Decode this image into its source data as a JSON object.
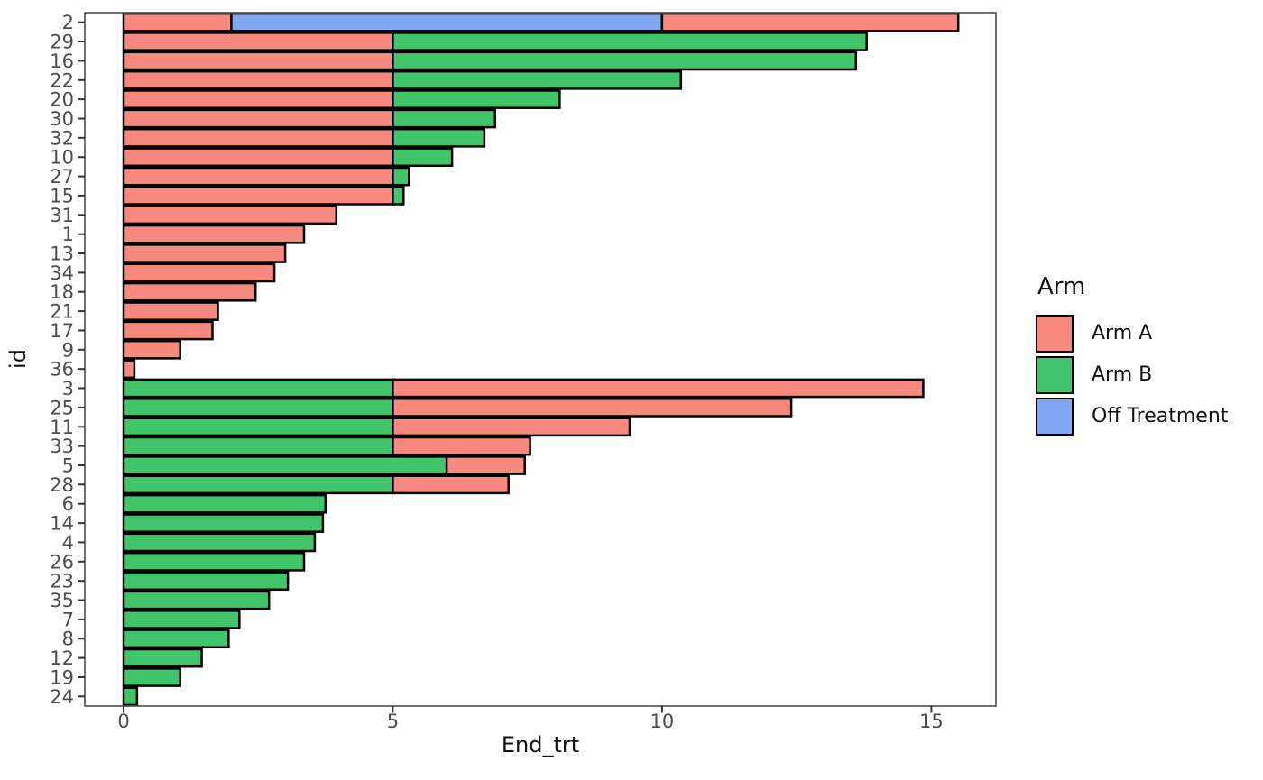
{
  "chart_data": {
    "type": "bar",
    "orientation": "horizontal",
    "stacked": true,
    "title": "",
    "xlabel": "End_trt",
    "ylabel": "id",
    "xlim": [
      -0.72,
      16.2
    ],
    "xticks": [
      0,
      5,
      10,
      15
    ],
    "grid": false,
    "legend": {
      "title": "Arm",
      "position": "right",
      "entries": [
        {
          "label": "Arm A",
          "color": "#F8897F"
        },
        {
          "label": "Arm B",
          "color": "#42C56A"
        },
        {
          "label": "Off Treatment",
          "color": "#81A7F0"
        }
      ]
    },
    "colors": {
      "Arm A": "#F8897F",
      "Arm B": "#42C56A",
      "Off Treatment": "#81A7F0",
      "bar_border": "#000000"
    },
    "categories": [
      "2",
      "29",
      "16",
      "22",
      "20",
      "30",
      "32",
      "10",
      "27",
      "15",
      "31",
      "1",
      "13",
      "34",
      "18",
      "21",
      "17",
      "9",
      "36",
      "3",
      "25",
      "11",
      "33",
      "5",
      "28",
      "6",
      "14",
      "4",
      "26",
      "23",
      "35",
      "7",
      "8",
      "12",
      "19",
      "24"
    ],
    "rows": [
      {
        "id": "2",
        "segments": [
          {
            "arm": "Arm A",
            "start": 0,
            "end": 2
          },
          {
            "arm": "Off Treatment",
            "start": 2,
            "end": 10
          },
          {
            "arm": "Arm A",
            "start": 10,
            "end": 15.5
          }
        ]
      },
      {
        "id": "29",
        "segments": [
          {
            "arm": "Arm A",
            "start": 0,
            "end": 5
          },
          {
            "arm": "Arm B",
            "start": 5,
            "end": 13.8
          }
        ]
      },
      {
        "id": "16",
        "segments": [
          {
            "arm": "Arm A",
            "start": 0,
            "end": 5
          },
          {
            "arm": "Arm B",
            "start": 5,
            "end": 13.6
          }
        ]
      },
      {
        "id": "22",
        "segments": [
          {
            "arm": "Arm A",
            "start": 0,
            "end": 5
          },
          {
            "arm": "Arm B",
            "start": 5,
            "end": 10.35
          }
        ]
      },
      {
        "id": "20",
        "segments": [
          {
            "arm": "Arm A",
            "start": 0,
            "end": 5
          },
          {
            "arm": "Arm B",
            "start": 5,
            "end": 8.1
          }
        ]
      },
      {
        "id": "30",
        "segments": [
          {
            "arm": "Arm A",
            "start": 0,
            "end": 5
          },
          {
            "arm": "Arm B",
            "start": 5,
            "end": 6.9
          }
        ]
      },
      {
        "id": "32",
        "segments": [
          {
            "arm": "Arm A",
            "start": 0,
            "end": 5
          },
          {
            "arm": "Arm B",
            "start": 5,
            "end": 6.7
          }
        ]
      },
      {
        "id": "10",
        "segments": [
          {
            "arm": "Arm A",
            "start": 0,
            "end": 5
          },
          {
            "arm": "Arm B",
            "start": 5,
            "end": 6.1
          }
        ]
      },
      {
        "id": "27",
        "segments": [
          {
            "arm": "Arm A",
            "start": 0,
            "end": 5
          },
          {
            "arm": "Arm B",
            "start": 5,
            "end": 5.3
          }
        ]
      },
      {
        "id": "15",
        "segments": [
          {
            "arm": "Arm A",
            "start": 0,
            "end": 5
          },
          {
            "arm": "Arm B",
            "start": 5,
            "end": 5.2
          }
        ]
      },
      {
        "id": "31",
        "segments": [
          {
            "arm": "Arm A",
            "start": 0,
            "end": 3.95
          }
        ]
      },
      {
        "id": "1",
        "segments": [
          {
            "arm": "Arm A",
            "start": 0,
            "end": 3.35
          }
        ]
      },
      {
        "id": "13",
        "segments": [
          {
            "arm": "Arm A",
            "start": 0,
            "end": 3.0
          }
        ]
      },
      {
        "id": "34",
        "segments": [
          {
            "arm": "Arm A",
            "start": 0,
            "end": 2.8
          }
        ]
      },
      {
        "id": "18",
        "segments": [
          {
            "arm": "Arm A",
            "start": 0,
            "end": 2.45
          }
        ]
      },
      {
        "id": "21",
        "segments": [
          {
            "arm": "Arm A",
            "start": 0,
            "end": 1.75
          }
        ]
      },
      {
        "id": "17",
        "segments": [
          {
            "arm": "Arm A",
            "start": 0,
            "end": 1.65
          }
        ]
      },
      {
        "id": "9",
        "segments": [
          {
            "arm": "Arm A",
            "start": 0,
            "end": 1.05
          }
        ]
      },
      {
        "id": "36",
        "segments": [
          {
            "arm": "Arm A",
            "start": 0,
            "end": 0.2
          }
        ]
      },
      {
        "id": "3",
        "segments": [
          {
            "arm": "Arm B",
            "start": 0,
            "end": 5
          },
          {
            "arm": "Arm A",
            "start": 5,
            "end": 14.85
          }
        ]
      },
      {
        "id": "25",
        "segments": [
          {
            "arm": "Arm B",
            "start": 0,
            "end": 5
          },
          {
            "arm": "Arm A",
            "start": 5,
            "end": 12.4
          }
        ]
      },
      {
        "id": "11",
        "segments": [
          {
            "arm": "Arm B",
            "start": 0,
            "end": 5
          },
          {
            "arm": "Arm A",
            "start": 5,
            "end": 9.4
          }
        ]
      },
      {
        "id": "33",
        "segments": [
          {
            "arm": "Arm B",
            "start": 0,
            "end": 5
          },
          {
            "arm": "Arm A",
            "start": 5,
            "end": 7.55
          }
        ]
      },
      {
        "id": "5",
        "segments": [
          {
            "arm": "Arm B",
            "start": 0,
            "end": 6
          },
          {
            "arm": "Arm A",
            "start": 6,
            "end": 7.45
          }
        ]
      },
      {
        "id": "28",
        "segments": [
          {
            "arm": "Arm B",
            "start": 0,
            "end": 5
          },
          {
            "arm": "Arm A",
            "start": 5,
            "end": 7.15
          }
        ]
      },
      {
        "id": "6",
        "segments": [
          {
            "arm": "Arm B",
            "start": 0,
            "end": 3.75
          }
        ]
      },
      {
        "id": "14",
        "segments": [
          {
            "arm": "Arm B",
            "start": 0,
            "end": 3.7
          }
        ]
      },
      {
        "id": "4",
        "segments": [
          {
            "arm": "Arm B",
            "start": 0,
            "end": 3.55
          }
        ]
      },
      {
        "id": "26",
        "segments": [
          {
            "arm": "Arm B",
            "start": 0,
            "end": 3.35
          }
        ]
      },
      {
        "id": "23",
        "segments": [
          {
            "arm": "Arm B",
            "start": 0,
            "end": 3.05
          }
        ]
      },
      {
        "id": "35",
        "segments": [
          {
            "arm": "Arm B",
            "start": 0,
            "end": 2.7
          }
        ]
      },
      {
        "id": "7",
        "segments": [
          {
            "arm": "Arm B",
            "start": 0,
            "end": 2.15
          }
        ]
      },
      {
        "id": "8",
        "segments": [
          {
            "arm": "Arm B",
            "start": 0,
            "end": 1.95
          }
        ]
      },
      {
        "id": "12",
        "segments": [
          {
            "arm": "Arm B",
            "start": 0,
            "end": 1.45
          }
        ]
      },
      {
        "id": "19",
        "segments": [
          {
            "arm": "Arm B",
            "start": 0,
            "end": 1.05
          }
        ]
      },
      {
        "id": "24",
        "segments": [
          {
            "arm": "Arm B",
            "start": 0,
            "end": 0.25
          }
        ]
      }
    ]
  }
}
